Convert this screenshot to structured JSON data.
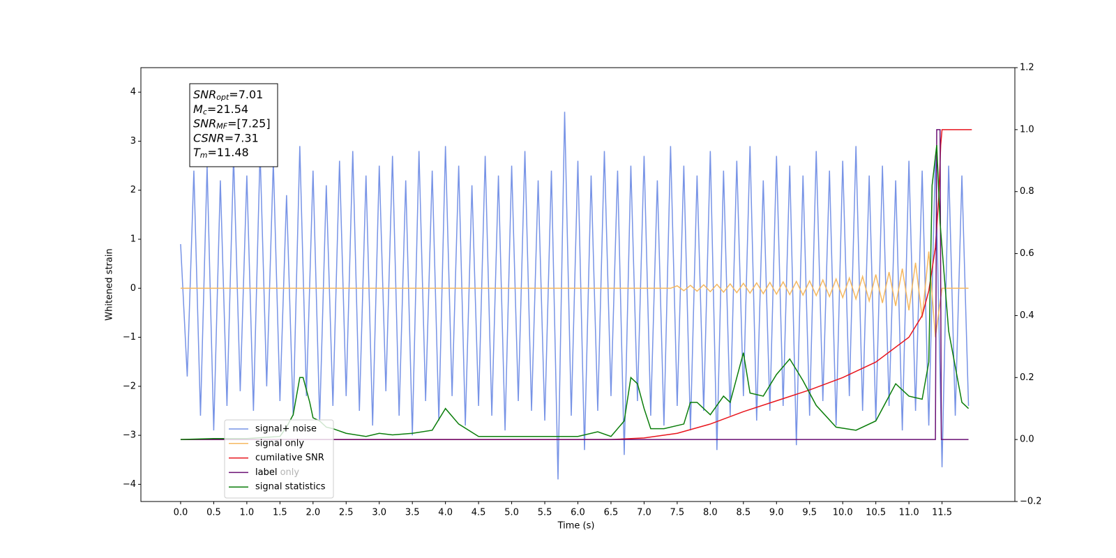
{
  "chart_data": {
    "type": "line",
    "ylabel": "Whitened strain",
    "xlabel": "Time (s)",
    "xlim": [
      -0.6,
      12.6
    ],
    "ylim": [
      -4.35,
      4.5
    ],
    "y2lim": [
      -0.2,
      1.2
    ],
    "xticks": [
      {
        "value": 0,
        "label": "0.0"
      },
      0.5,
      {
        "value": 1,
        "label": "1.0"
      },
      1.5,
      {
        "value": 2,
        "label": "2.0"
      },
      2.5,
      {
        "value": 3,
        "label": "3.0"
      },
      3.5,
      {
        "value": 4,
        "label": "4.0"
      },
      4.5,
      {
        "value": 5,
        "label": "5.0"
      },
      5.5,
      {
        "value": 6,
        "label": "6.0"
      },
      6.5,
      {
        "value": 7,
        "label": "7.0"
      },
      7.5,
      {
        "value": 8,
        "label": "8.0"
      },
      8.5,
      {
        "value": 9,
        "label": "9.0"
      },
      9.5,
      {
        "value": 10,
        "label": "10.0"
      },
      10.5,
      {
        "value": 11,
        "label": "11.0"
      },
      11.5
    ],
    "yticks": [
      {
        "value": -4,
        "label": "−4"
      },
      {
        "value": -3,
        "label": "−3"
      },
      {
        "value": -2,
        "label": "−2"
      },
      {
        "value": -1,
        "label": "−1"
      },
      0,
      1,
      2,
      3,
      4
    ],
    "y2ticks": [
      {
        "value": -0.2,
        "label": "−0.2"
      },
      {
        "value": 0,
        "label": "0.0"
      },
      0.2,
      0.4,
      0.6,
      0.8,
      {
        "value": 1,
        "label": "1.0"
      },
      1.2
    ],
    "annotations": [
      {
        "base": "SNR",
        "sub": "opt",
        "rest": "=7.01"
      },
      {
        "base": "M",
        "sub": "c",
        "rest": "=21.54"
      },
      {
        "base": "SNR",
        "sub": "MF",
        "rest": "=[7.25]"
      },
      {
        "base": "CSNR",
        "rest": "=7.31"
      },
      {
        "base": "T",
        "sub": "m",
        "rest": "=11.48"
      }
    ],
    "legend": "lower left",
    "legend_ghost": "label only",
    "x": [
      0,
      0.1,
      0.2,
      0.3,
      0.4,
      0.5,
      0.6,
      0.7,
      0.8,
      0.9,
      1,
      1.1,
      1.2,
      1.3,
      1.4,
      1.5,
      1.6,
      1.7,
      1.8,
      1.9,
      2,
      2.1,
      2.2,
      2.3,
      2.4,
      2.5,
      2.6,
      2.7,
      2.8,
      2.9,
      3,
      3.1,
      3.2,
      3.3,
      3.4,
      3.5,
      3.6,
      3.7,
      3.8,
      3.9,
      4,
      4.1,
      4.2,
      4.3,
      4.4,
      4.5,
      4.6,
      4.7,
      4.8,
      4.9,
      5,
      5.1,
      5.2,
      5.3,
      5.4,
      5.5,
      5.6,
      5.7,
      5.8,
      5.9,
      6,
      6.1,
      6.2,
      6.3,
      6.4,
      6.5,
      6.6,
      6.7,
      6.8,
      6.9,
      7,
      7.1,
      7.2,
      7.3,
      7.4,
      7.5,
      7.6,
      7.7,
      7.8,
      7.9,
      8,
      8.1,
      8.2,
      8.3,
      8.4,
      8.5,
      8.6,
      8.7,
      8.8,
      8.9,
      9,
      9.1,
      9.2,
      9.3,
      9.4,
      9.5,
      9.6,
      9.7,
      9.8,
      9.9,
      10,
      10.1,
      10.2,
      10.3,
      10.4,
      10.5,
      10.6,
      10.7,
      10.8,
      10.9,
      11,
      11.1,
      11.2,
      11.3,
      11.4,
      11.5,
      11.6,
      11.7,
      11.8,
      11.9
    ],
    "series": [
      {
        "name": "signal+ noise",
        "color": "#7793e6",
        "values": [
          0.9,
          -1.8,
          2.4,
          -2.6,
          2.5,
          -2.9,
          2.2,
          -2.4,
          2.7,
          -2.1,
          2.3,
          -2.5,
          2.8,
          -2.0,
          2.6,
          -2.3,
          1.9,
          -2.6,
          2.9,
          -2.2,
          2.4,
          -2.7,
          2.1,
          -2.4,
          2.6,
          -2.2,
          2.8,
          -2.5,
          2.3,
          -2.8,
          2.5,
          -2.1,
          2.7,
          -2.6,
          2.2,
          -3.0,
          2.8,
          -2.3,
          2.4,
          -2.7,
          2.9,
          -2.2,
          2.5,
          -2.8,
          2.1,
          -2.4,
          2.7,
          -2.6,
          2.3,
          -2.9,
          2.5,
          -2.3,
          2.8,
          -2.5,
          2.2,
          -2.7,
          2.4,
          -3.9,
          3.6,
          -2.6,
          2.6,
          -3.3,
          2.3,
          -2.5,
          2.8,
          -2.2,
          2.4,
          -3.4,
          2.5,
          -2.3,
          2.7,
          -2.6,
          2.2,
          -2.8,
          2.9,
          -2.4,
          2.5,
          -2.9,
          2.3,
          -2.5,
          2.8,
          -3.3,
          2.4,
          -2.6,
          2.6,
          -2.2,
          2.9,
          -2.7,
          2.2,
          -2.5,
          2.7,
          -2.4,
          2.5,
          -3.2,
          2.3,
          -2.6,
          2.8,
          -2.3,
          2.4,
          -2.8,
          2.6,
          -2.2,
          2.9,
          -2.5,
          2.3,
          -2.7,
          2.5,
          -2.4,
          2.2,
          -2.9,
          2.6,
          -2.5,
          2.4,
          -2.8,
          2.7,
          -3.65,
          2.5,
          -2.6,
          2.3,
          -2.4
        ]
      },
      {
        "name": "signal only",
        "color": "#f5b860",
        "values": [
          0,
          0,
          0,
          0,
          0,
          0,
          0,
          0,
          0,
          0,
          0,
          0,
          0,
          0,
          0,
          0,
          0,
          0,
          0,
          0,
          0,
          0,
          0,
          0,
          0,
          0,
          0,
          0,
          0,
          0,
          0,
          0,
          0,
          0,
          0,
          0,
          0,
          0,
          0,
          0,
          0,
          0,
          0,
          0,
          0,
          0,
          0,
          0,
          0,
          0,
          0,
          0,
          0,
          0,
          0,
          0,
          0,
          0,
          0,
          0,
          0,
          0,
          0,
          0,
          0,
          0,
          0,
          0,
          0,
          0,
          0,
          0,
          0,
          0,
          0,
          0.05,
          -0.05,
          0.06,
          -0.06,
          0.07,
          -0.07,
          0.08,
          -0.08,
          0.09,
          -0.09,
          0.1,
          -0.1,
          0.11,
          -0.11,
          0.12,
          -0.12,
          0.13,
          -0.13,
          0.14,
          -0.14,
          0.15,
          -0.15,
          0.17,
          -0.17,
          0.19,
          -0.19,
          0.21,
          -0.22,
          0.24,
          -0.26,
          0.28,
          -0.3,
          0.33,
          -0.36,
          0.4,
          -0.45,
          0.52,
          -0.6,
          0.75,
          -1.0,
          0,
          0,
          0,
          0,
          0
        ]
      },
      {
        "name": "cumilative SNR",
        "color": "#e8141c",
        "axis": "y2",
        "x": [
          0,
          6.5,
          7,
          7.5,
          8,
          8.5,
          9,
          9.5,
          10,
          10.5,
          11,
          11.2,
          11.3,
          11.4,
          11.45,
          11.48,
          11.5,
          11.95
        ],
        "values": [
          0,
          0,
          0.005,
          0.02,
          0.05,
          0.09,
          0.125,
          0.16,
          0.2,
          0.25,
          0.33,
          0.4,
          0.48,
          0.62,
          0.78,
          0.95,
          1.0,
          1.0
        ]
      },
      {
        "name": "label",
        "color": "#6a0f73",
        "axis": "y2",
        "x": [
          0,
          11.4,
          11.42,
          11.47,
          11.49,
          11.9
        ],
        "values": [
          0,
          0,
          1,
          1,
          0,
          0
        ]
      },
      {
        "name": "signal statistics",
        "color": "#0a7d0a",
        "axis": "y2",
        "x": [
          0,
          0.5,
          1,
          1.5,
          1.6,
          1.7,
          1.8,
          1.85,
          1.95,
          2,
          2.1,
          2.2,
          2.3,
          2.5,
          2.8,
          3,
          3.2,
          3.5,
          3.8,
          4,
          4.2,
          4.5,
          5,
          5.5,
          6,
          6.3,
          6.5,
          6.7,
          6.8,
          6.9,
          7,
          7.1,
          7.3,
          7.6,
          7.7,
          7.8,
          8,
          8.2,
          8.3,
          8.5,
          8.6,
          8.8,
          9,
          9.2,
          9.4,
          9.6,
          9.9,
          10.2,
          10.5,
          10.8,
          11,
          11.2,
          11.3,
          11.35,
          11.42,
          11.47,
          11.6,
          11.8,
          11.9
        ],
        "values": [
          0,
          0.003,
          0.003,
          0.01,
          0.04,
          0.08,
          0.2,
          0.2,
          0.12,
          0.07,
          0.06,
          0.04,
          0.035,
          0.02,
          0.01,
          0.02,
          0.015,
          0.02,
          0.03,
          0.1,
          0.05,
          0.01,
          0.01,
          0.01,
          0.01,
          0.025,
          0.01,
          0.06,
          0.2,
          0.18,
          0.1,
          0.035,
          0.035,
          0.05,
          0.12,
          0.12,
          0.08,
          0.14,
          0.12,
          0.28,
          0.15,
          0.14,
          0.21,
          0.26,
          0.19,
          0.11,
          0.04,
          0.03,
          0.06,
          0.18,
          0.14,
          0.13,
          0.25,
          0.82,
          0.95,
          0.7,
          0.35,
          0.12,
          0.1
        ]
      }
    ]
  }
}
